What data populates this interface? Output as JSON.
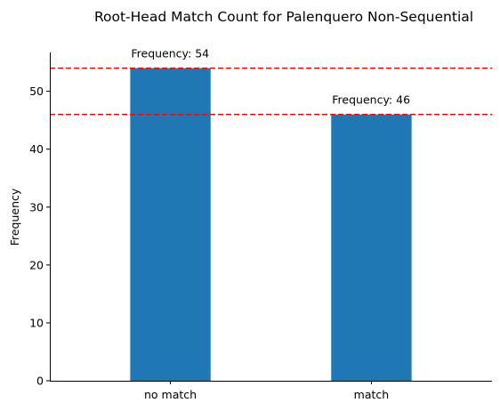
{
  "chart_data": {
    "type": "bar",
    "title": "Root-Head Match Count for Palenquero Non-Sequential",
    "xlabel": "",
    "ylabel": "Frequency",
    "categories": [
      "no match",
      "match"
    ],
    "values": [
      54,
      46
    ],
    "ylim": [
      0,
      56.7
    ],
    "yticks": [
      0,
      10,
      20,
      30,
      40,
      50
    ],
    "bar_color": "#1f77b4",
    "data_labels": [
      "Frequency: 54",
      "Frequency: 46"
    ],
    "reference_lines": [
      {
        "y": 54,
        "color": "#ff0000",
        "style": "dashed"
      },
      {
        "y": 46,
        "color": "#ff0000",
        "style": "dashed"
      }
    ],
    "grid": false,
    "legend": "none"
  }
}
